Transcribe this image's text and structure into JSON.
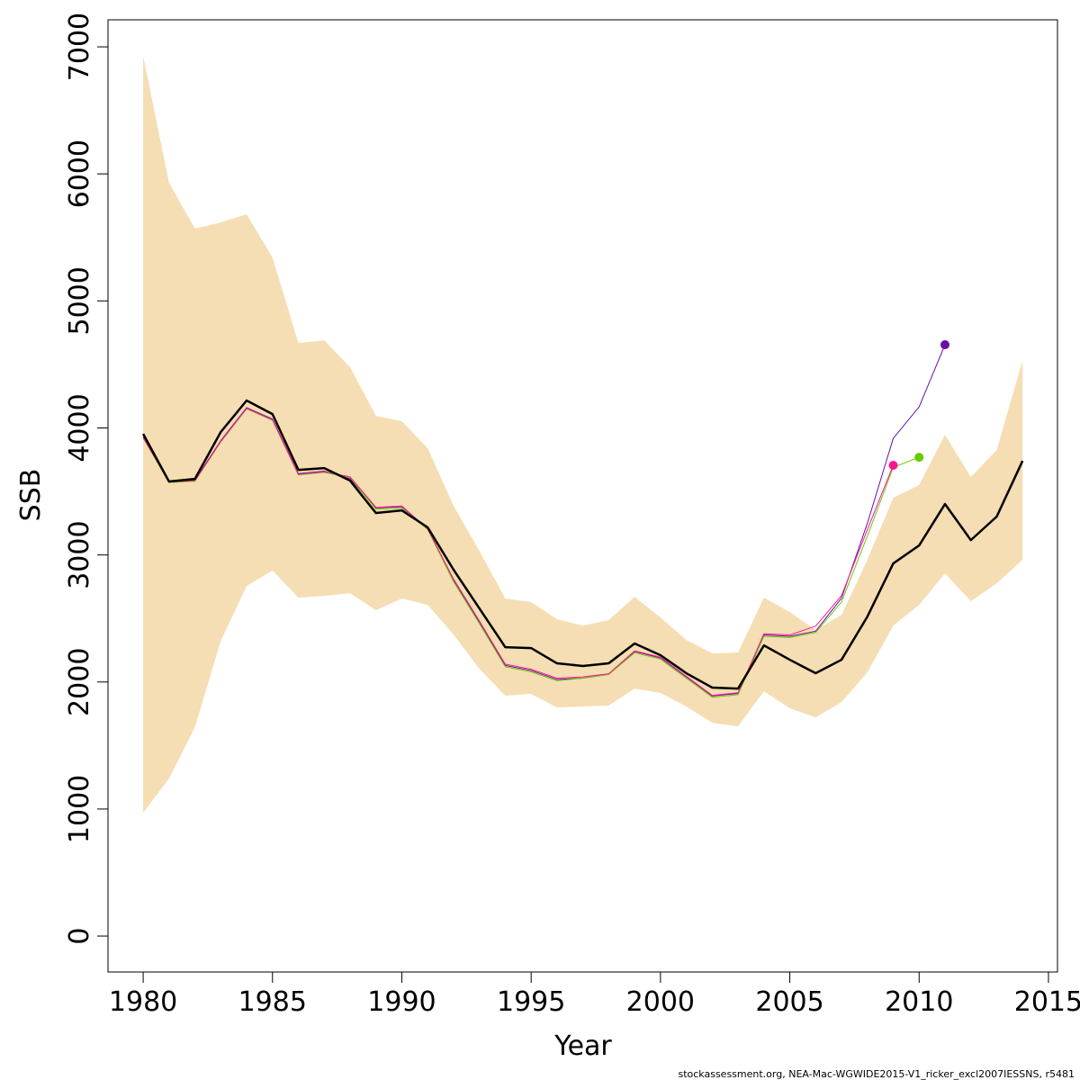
{
  "chart_data": {
    "type": "line",
    "x_label": "Year",
    "y_label": "SSB",
    "footer": "stockassessment.org, NEA-Mac-WGWIDE2015-V1_ricker_excl2007IESSNS, r5481",
    "x": [
      1980,
      1981,
      1982,
      1983,
      1984,
      1985,
      1986,
      1987,
      1988,
      1989,
      1990,
      1991,
      1992,
      1993,
      1994,
      1995,
      1996,
      1997,
      1998,
      1999,
      2000,
      2001,
      2002,
      2003,
      2004,
      2005,
      2006,
      2007,
      2008,
      2009,
      2010,
      2011,
      2012,
      2013,
      2014
    ],
    "band": {
      "color": "#f5deb3",
      "upper": [
        6929,
        5930,
        5569,
        5618,
        5682,
        5342,
        4669,
        4690,
        4478,
        4095,
        4053,
        3840,
        3387,
        3032,
        2657,
        2629,
        2494,
        2444,
        2487,
        2671,
        2508,
        2331,
        2225,
        2232,
        2664,
        2551,
        2409,
        2529,
        2962,
        3450,
        3550,
        3946,
        3613,
        3826,
        4534
      ],
      "lower": [
        971,
        1240,
        1644,
        2324,
        2756,
        2877,
        2664,
        2678,
        2699,
        2565,
        2657,
        2607,
        2374,
        2104,
        1892,
        1906,
        1800,
        1807,
        1814,
        1948,
        1913,
        1807,
        1679,
        1651,
        1927,
        1793,
        1722,
        1842,
        2076,
        2444,
        2607,
        2855,
        2636,
        2777,
        2962
      ]
    },
    "series": [
      {
        "color": "#6a0dad",
        "width": 1,
        "end_marker": true,
        "values": [
          3930,
          3580,
          3590,
          3900,
          4160,
          4070,
          3640,
          3660,
          3600,
          3370,
          3380,
          3210,
          2800,
          2470,
          2130,
          2090,
          2020,
          2030,
          2060,
          2240,
          2190,
          2040,
          1890,
          1910,
          2370,
          2360,
          2400,
          2660,
          3250,
          3918,
          4166,
          4655,
          null,
          null,
          null
        ]
      },
      {
        "color": "#66cc00",
        "width": 1,
        "end_marker": true,
        "values": [
          3920,
          3570,
          3580,
          3890,
          4150,
          4060,
          3630,
          3650,
          3610,
          3360,
          3370,
          3200,
          2790,
          2460,
          2120,
          2080,
          2010,
          2030,
          2060,
          2230,
          2180,
          2030,
          1880,
          1900,
          2360,
          2350,
          2390,
          2630,
          3150,
          3690,
          3769,
          null,
          null,
          null,
          null
        ]
      },
      {
        "color": "#ff1493",
        "width": 1,
        "end_marker": true,
        "values": [
          3925,
          3575,
          3585,
          3895,
          4155,
          4065,
          3635,
          3655,
          3615,
          3375,
          3385,
          3205,
          2810,
          2480,
          2140,
          2100,
          2030,
          2040,
          2065,
          2245,
          2195,
          2045,
          1895,
          1915,
          2380,
          2370,
          2440,
          2680,
          3200,
          3706,
          null,
          null,
          null,
          null,
          null
        ]
      },
      {
        "color": "#000000",
        "width": 2.5,
        "end_marker": false,
        "values": [
          3953,
          3578,
          3599,
          3968,
          4216,
          4109,
          3670,
          3684,
          3585,
          3330,
          3351,
          3217,
          2884,
          2579,
          2274,
          2267,
          2147,
          2126,
          2147,
          2303,
          2211,
          2069,
          1956,
          1948,
          2288,
          2175,
          2069,
          2175,
          2515,
          2933,
          3075,
          3401,
          3117,
          3302,
          3741
        ]
      }
    ],
    "xlim": [
      1978.64,
      2015.35
    ],
    "ylim": [
      -283,
      7213
    ],
    "xticks": [
      1980,
      1985,
      1990,
      1995,
      2000,
      2005,
      2010,
      2015
    ],
    "yticks": [
      0,
      1000,
      2000,
      3000,
      4000,
      5000,
      6000,
      7000
    ]
  }
}
